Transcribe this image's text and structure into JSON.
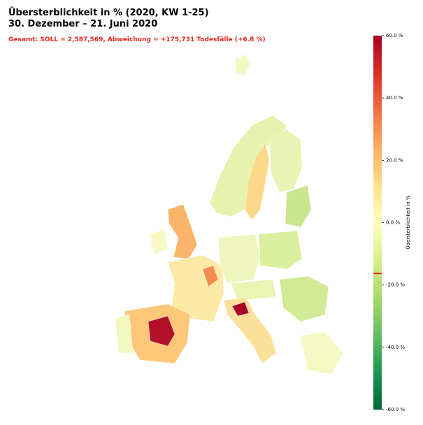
{
  "chart_data": {
    "type": "choropleth",
    "title": "Übersterblichkeit in % (2020, KW 1-25)",
    "subtitle": "30. Dezember – 21. Juni 2020",
    "annotation": "Gesamt: SOLL = 2,587,569, Abweichung = +175,731 Todesfälle (+6.8 %)",
    "colorbar_label": "Übersterblichkeit in %",
    "clim": [
      -60,
      60
    ],
    "cticks": [
      {
        "value": 60,
        "label": "60.0 %"
      },
      {
        "value": 40,
        "label": "40.0 %"
      },
      {
        "value": 20,
        "label": "20.0 %"
      },
      {
        "value": 0,
        "label": "0.0 %"
      },
      {
        "value": -20,
        "label": "-20.0 %"
      },
      {
        "value": -40,
        "label": "-40.0 %"
      },
      {
        "value": -60,
        "label": "-60.0 %"
      }
    ],
    "marker_value": -16.3,
    "marker_color": "#e8251f"
  }
}
